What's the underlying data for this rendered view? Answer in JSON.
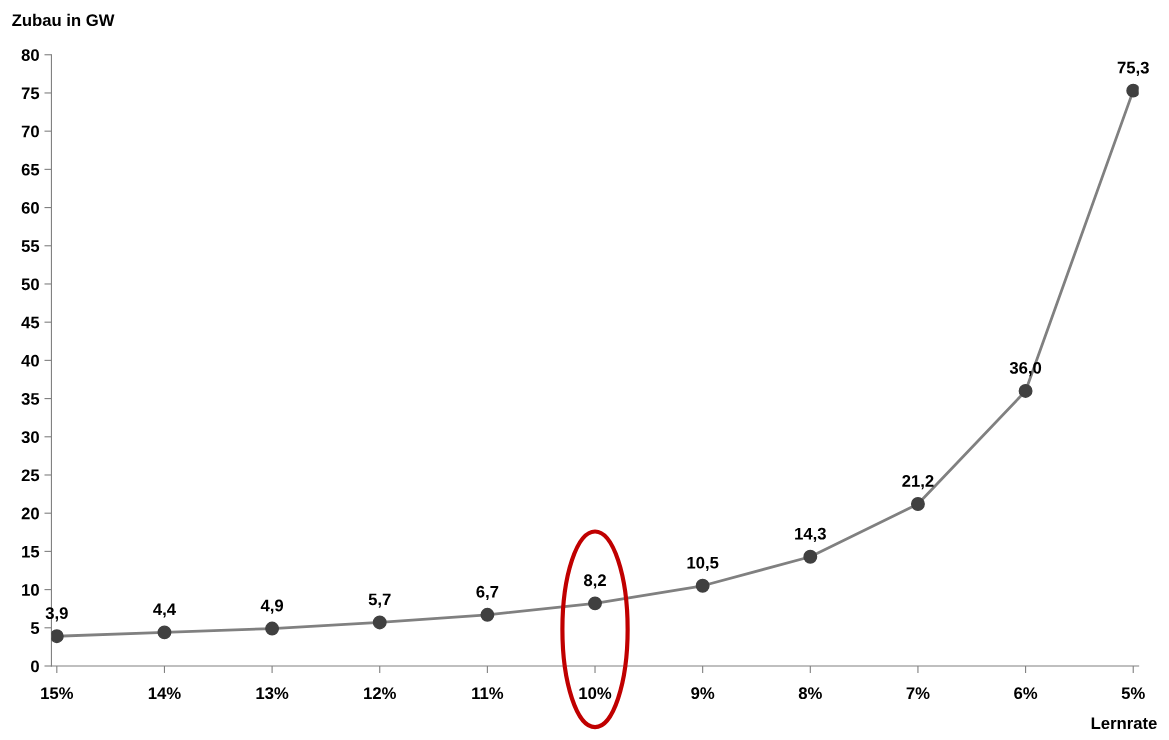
{
  "chart_data": {
    "type": "line",
    "xlabel": "Lernrate",
    "ylabel": "Zubau in GW",
    "categories": [
      "15%",
      "14%",
      "13%",
      "12%",
      "11%",
      "10%",
      "9%",
      "8%",
      "7%",
      "6%",
      "5%"
    ],
    "series": [
      {
        "color": "#808080",
        "values": [
          3.9,
          4.4,
          4.9,
          5.7,
          6.7,
          8.2,
          10.5,
          14.3,
          21.2,
          36.0,
          75.3
        ]
      }
    ],
    "value_labels": [
      "3,9",
      "4,4",
      "4,9",
      "5,7",
      "6,7",
      "8,2",
      "10,5",
      "14,3",
      "21,2",
      "36,0",
      "75,3"
    ],
    "ylim": [
      0,
      80
    ],
    "yticks": [
      0,
      5,
      10,
      15,
      20,
      25,
      30,
      35,
      40,
      45,
      50,
      55,
      60,
      65,
      70,
      75,
      80
    ],
    "marker": "circle",
    "line_style": "solid",
    "grid": false,
    "legend": false
  }
}
